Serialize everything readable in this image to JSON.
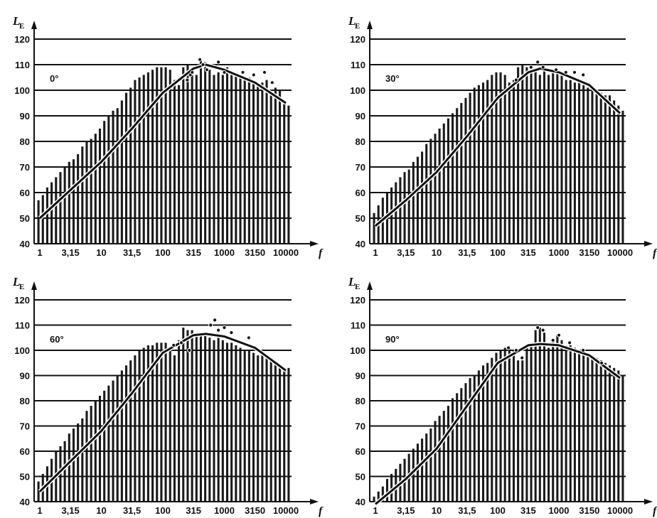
{
  "chart_data": [
    {
      "type": "bar",
      "title": "",
      "annotation": "0°",
      "ylabel": "L",
      "ylabel_sub": "E",
      "xlabel": "f",
      "ylim": [
        40,
        120
      ],
      "yticks": [
        "40",
        "50",
        "60",
        "70",
        "80",
        "90",
        "100",
        "110",
        "120"
      ],
      "xticks": [
        "1",
        "3,15",
        "10",
        "31,5",
        "100",
        "315",
        "1000",
        "3150",
        "10000"
      ],
      "x_scale": "log",
      "grid": true,
      "values": [
        57,
        59,
        62,
        64,
        66,
        68,
        70,
        72,
        73,
        75,
        78,
        80,
        81,
        83,
        85,
        88,
        90,
        92,
        93,
        96,
        99,
        101,
        104,
        105,
        106,
        107,
        108,
        109,
        109,
        109,
        108,
        104,
        102,
        109,
        110,
        106,
        106,
        112,
        111,
        108,
        106,
        107,
        106,
        109,
        107,
        107,
        106,
        105,
        105,
        104,
        102,
        103,
        104,
        99,
        101,
        100,
        96,
        94
      ],
      "curve": [
        [
          1,
          50
        ],
        [
          3.15,
          61
        ],
        [
          10,
          72
        ],
        [
          31.5,
          85
        ],
        [
          100,
          99
        ],
        [
          315,
          108.5
        ],
        [
          500,
          110
        ],
        [
          1000,
          108
        ],
        [
          3150,
          103
        ],
        [
          10000,
          95
        ]
      ],
      "points": [
        [
          250,
          104
        ],
        [
          280,
          106
        ],
        [
          300,
          107
        ],
        [
          400,
          112
        ],
        [
          450,
          110
        ],
        [
          520,
          108
        ],
        [
          800,
          111
        ],
        [
          1000,
          107
        ],
        [
          2000,
          107
        ],
        [
          3000,
          106
        ],
        [
          4500,
          107
        ],
        [
          6000,
          103
        ]
      ]
    },
    {
      "type": "bar",
      "title": "",
      "annotation": "30°",
      "ylabel": "L",
      "ylabel_sub": "E",
      "xlabel": "f",
      "ylim": [
        40,
        120
      ],
      "yticks": [
        "40",
        "50",
        "60",
        "70",
        "80",
        "90",
        "100",
        "110",
        "120"
      ],
      "xticks": [
        "1",
        "3,15",
        "10",
        "31,5",
        "100",
        "315",
        "1000",
        "3150",
        "10000"
      ],
      "x_scale": "log",
      "grid": true,
      "values": [
        52,
        55,
        58,
        60,
        62,
        64,
        66,
        68,
        69,
        72,
        74,
        76,
        79,
        81,
        83,
        85,
        87,
        89,
        91,
        93,
        95,
        97,
        99,
        101,
        102,
        103,
        104,
        106,
        107,
        107,
        106,
        103,
        104,
        109,
        110,
        109,
        107,
        108,
        106,
        108,
        106,
        108,
        107,
        106,
        104,
        104,
        103,
        103,
        102,
        101,
        100,
        100,
        99,
        98,
        98,
        96,
        94,
        92
      ],
      "curve": [
        [
          1,
          47
        ],
        [
          3.15,
          57
        ],
        [
          10,
          68
        ],
        [
          31.5,
          82
        ],
        [
          100,
          97
        ],
        [
          315,
          107
        ],
        [
          500,
          108.5
        ],
        [
          1000,
          107
        ],
        [
          3150,
          102
        ],
        [
          10000,
          91
        ]
      ],
      "points": [
        [
          200,
          104
        ],
        [
          350,
          109
        ],
        [
          450,
          111
        ],
        [
          550,
          109
        ],
        [
          900,
          108
        ],
        [
          1300,
          107
        ],
        [
          1800,
          107
        ],
        [
          2500,
          106
        ]
      ]
    },
    {
      "type": "bar",
      "title": "",
      "annotation": "60°",
      "ylabel": "L",
      "ylabel_sub": "E",
      "xlabel": "f",
      "ylim": [
        40,
        120
      ],
      "yticks": [
        "40",
        "50",
        "60",
        "70",
        "80",
        "90",
        "100",
        "110",
        "120"
      ],
      "xticks": [
        "1",
        "3,15",
        "10",
        "31,5",
        "100",
        "315",
        "1000",
        "3150",
        "10000"
      ],
      "x_scale": "log",
      "grid": true,
      "values": [
        48,
        51,
        54,
        57,
        60,
        62,
        64,
        67,
        69,
        71,
        73,
        76,
        78,
        80,
        82,
        84,
        86,
        88,
        90,
        92,
        94,
        96,
        98,
        100,
        101,
        102,
        102,
        103,
        103,
        103,
        101,
        98,
        104,
        109,
        108,
        108,
        107,
        106,
        107,
        105,
        104,
        105,
        104,
        103,
        103,
        102,
        101,
        100,
        100,
        99,
        98,
        98,
        97,
        96,
        95,
        94,
        93,
        93
      ],
      "curve": [
        [
          1,
          44
        ],
        [
          3.15,
          56
        ],
        [
          10,
          68
        ],
        [
          31.5,
          83
        ],
        [
          100,
          99
        ],
        [
          315,
          106
        ],
        [
          500,
          106.5
        ],
        [
          1000,
          105.5
        ],
        [
          3150,
          101
        ],
        [
          10000,
          92
        ]
      ],
      "points": [
        [
          150,
          102
        ],
        [
          200,
          103
        ],
        [
          270,
          100
        ],
        [
          600,
          110
        ],
        [
          700,
          112
        ],
        [
          800,
          108
        ],
        [
          1000,
          109
        ],
        [
          1300,
          107
        ],
        [
          2500,
          105
        ]
      ]
    },
    {
      "type": "bar",
      "title": "",
      "annotation": "90°",
      "ylabel": "L",
      "ylabel_sub": "E",
      "xlabel": "f",
      "ylim": [
        40,
        120
      ],
      "yticks": [
        "40",
        "50",
        "60",
        "70",
        "80",
        "90",
        "100",
        "110",
        "120"
      ],
      "xticks": [
        "1",
        "3,15",
        "10",
        "31,5",
        "100",
        "315",
        "1000",
        "3150",
        "10000"
      ],
      "x_scale": "log",
      "grid": true,
      "values": [
        42,
        44,
        46,
        49,
        51,
        53,
        55,
        57,
        59,
        61,
        63,
        65,
        67,
        69,
        72,
        74,
        76,
        78,
        81,
        83,
        85,
        87,
        89,
        90,
        92,
        94,
        95,
        97,
        99,
        100,
        101,
        101,
        100,
        96,
        96,
        101,
        103,
        108,
        109,
        107,
        101,
        104,
        106,
        104,
        102,
        102,
        101,
        100,
        99,
        99,
        98,
        97,
        96,
        95,
        94,
        93,
        92,
        90
      ],
      "curve": [
        [
          1,
          39
        ],
        [
          3.15,
          49
        ],
        [
          10,
          61
        ],
        [
          31.5,
          78
        ],
        [
          100,
          95
        ],
        [
          315,
          102
        ],
        [
          500,
          102.5
        ],
        [
          1000,
          102
        ],
        [
          3150,
          98
        ],
        [
          10000,
          89
        ]
      ],
      "points": [
        [
          150,
          101
        ],
        [
          200,
          100
        ],
        [
          250,
          97
        ],
        [
          450,
          109
        ],
        [
          550,
          108
        ],
        [
          800,
          104
        ],
        [
          1000,
          106
        ],
        [
          1500,
          103
        ],
        [
          2500,
          100
        ],
        [
          5000,
          95
        ]
      ]
    }
  ]
}
